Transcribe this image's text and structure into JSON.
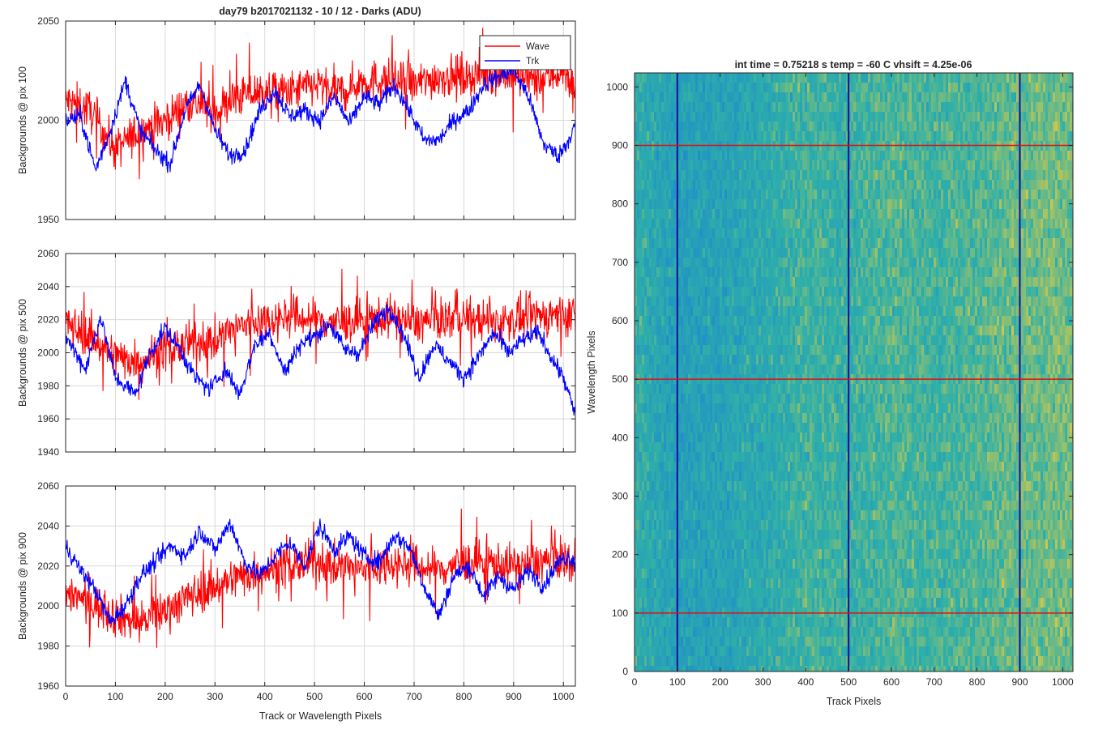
{
  "figure": {
    "title": "day79 b2017021132 - 10 / 12 - Darks (ADU)",
    "image_title": "int time = 0.75218 s   temp = -60 C   vhsift = 4.25e-06"
  },
  "colors": {
    "wave": "#ff0000",
    "trk": "#0000ff",
    "grid": "#d9d9d9",
    "axis": "#262626",
    "image_low": "#1f8fc8",
    "image_mid": "#2fb0a8",
    "image_high": "#c8c850"
  },
  "chart_data": [
    {
      "type": "line",
      "title": "day79 b2017021132 - 10 / 12 - Darks (ADU)",
      "xlabel": "",
      "ylabel": "Backgrounds @ pix 100",
      "xlim": [
        0,
        1024
      ],
      "ylim": [
        1950,
        2050
      ],
      "xticks": [
        0,
        100,
        200,
        300,
        400,
        500,
        600,
        700,
        800,
        900,
        1000
      ],
      "yticks": [
        1950,
        2000,
        2050
      ],
      "grid": true,
      "legend": "top-right",
      "series": [
        {
          "name": "Wave",
          "color": "#ff0000",
          "x": [
            0,
            50,
            100,
            150,
            200,
            250,
            300,
            350,
            400,
            450,
            500,
            550,
            600,
            650,
            700,
            750,
            800,
            850,
            900,
            950,
            1000,
            1024
          ],
          "y": [
            2010,
            2005,
            1985,
            1995,
            2000,
            2010,
            2005,
            2012,
            2015,
            2014,
            2018,
            2014,
            2020,
            2020,
            2018,
            2022,
            2022,
            2024,
            2022,
            2020,
            2025,
            2015
          ]
        },
        {
          "name": "Trk",
          "color": "#0000ff",
          "x": [
            0,
            30,
            60,
            90,
            120,
            150,
            180,
            210,
            240,
            270,
            300,
            330,
            360,
            390,
            420,
            450,
            480,
            510,
            540,
            570,
            600,
            630,
            660,
            690,
            720,
            750,
            780,
            810,
            840,
            870,
            900,
            930,
            960,
            990,
            1010,
            1024
          ],
          "y": [
            2000,
            2002,
            1975,
            1995,
            2020,
            1995,
            1985,
            1978,
            2005,
            2018,
            1995,
            1982,
            1985,
            2005,
            2015,
            2002,
            2005,
            2000,
            2012,
            1998,
            2012,
            2008,
            2018,
            2005,
            1990,
            1990,
            2000,
            2005,
            2018,
            2022,
            2025,
            2012,
            1988,
            1982,
            1990,
            1998
          ]
        }
      ]
    },
    {
      "type": "line",
      "title": "",
      "xlabel": "",
      "ylabel": "Backgrounds @ pix 500",
      "xlim": [
        0,
        1024
      ],
      "ylim": [
        1940,
        2060
      ],
      "xticks": [
        0,
        100,
        200,
        300,
        400,
        500,
        600,
        700,
        800,
        900,
        1000
      ],
      "yticks": [
        1940,
        1960,
        1980,
        2000,
        2020,
        2040,
        2060
      ],
      "grid": true,
      "series": [
        {
          "name": "Wave",
          "color": "#ff0000",
          "x": [
            0,
            50,
            100,
            150,
            200,
            250,
            300,
            350,
            400,
            450,
            500,
            550,
            600,
            650,
            700,
            750,
            800,
            850,
            900,
            950,
            1000,
            1024
          ],
          "y": [
            2018,
            2010,
            1998,
            1995,
            2002,
            2005,
            2008,
            2016,
            2020,
            2022,
            2020,
            2018,
            2020,
            2022,
            2018,
            2020,
            2022,
            2018,
            2020,
            2022,
            2024,
            2022
          ]
        },
        {
          "name": "Trk",
          "color": "#0000ff",
          "x": [
            0,
            40,
            70,
            100,
            140,
            170,
            200,
            230,
            260,
            290,
            320,
            350,
            380,
            410,
            440,
            470,
            500,
            530,
            560,
            590,
            620,
            650,
            680,
            710,
            740,
            770,
            800,
            830,
            860,
            890,
            920,
            950,
            980,
            1000,
            1024
          ],
          "y": [
            2010,
            1990,
            2022,
            1985,
            1975,
            2000,
            2015,
            2002,
            1985,
            1978,
            1990,
            1975,
            2005,
            2012,
            1988,
            2005,
            2010,
            2018,
            2002,
            2000,
            2018,
            2028,
            2010,
            1985,
            2005,
            1995,
            1985,
            1998,
            2012,
            2000,
            2008,
            2012,
            1995,
            1985,
            1962
          ]
        }
      ]
    },
    {
      "type": "line",
      "title": "",
      "xlabel": "Track or Wavelength Pixels",
      "ylabel": "Backgrounds @ pix 900",
      "xlim": [
        0,
        1024
      ],
      "ylim": [
        1960,
        2060
      ],
      "xticks": [
        0,
        100,
        200,
        300,
        400,
        500,
        600,
        700,
        800,
        900,
        1000
      ],
      "yticks": [
        1960,
        1980,
        2000,
        2020,
        2040,
        2060
      ],
      "grid": true,
      "series": [
        {
          "name": "Wave",
          "color": "#ff0000",
          "x": [
            0,
            50,
            100,
            150,
            200,
            250,
            300,
            350,
            400,
            450,
            500,
            550,
            600,
            650,
            700,
            750,
            800,
            850,
            900,
            950,
            1000,
            1024
          ],
          "y": [
            2008,
            2002,
            1995,
            1992,
            1998,
            2005,
            2010,
            2015,
            2018,
            2020,
            2022,
            2020,
            2018,
            2022,
            2020,
            2018,
            2022,
            2022,
            2020,
            2022,
            2024,
            2020
          ]
        },
        {
          "name": "Trk",
          "color": "#0000ff",
          "x": [
            0,
            30,
            60,
            90,
            120,
            150,
            180,
            210,
            240,
            270,
            300,
            330,
            360,
            390,
            420,
            450,
            480,
            510,
            540,
            570,
            600,
            630,
            660,
            690,
            720,
            750,
            780,
            810,
            840,
            870,
            900,
            930,
            960,
            990,
            1010,
            1024
          ],
          "y": [
            2030,
            2018,
            2008,
            1992,
            2000,
            2015,
            2022,
            2030,
            2025,
            2038,
            2028,
            2042,
            2022,
            2015,
            2025,
            2032,
            2020,
            2040,
            2028,
            2035,
            2025,
            2022,
            2035,
            2030,
            2010,
            1995,
            2015,
            2020,
            2005,
            2015,
            2008,
            2018,
            2010,
            2022,
            2025,
            2022
          ]
        }
      ]
    },
    {
      "type": "heatmap",
      "title": "int time = 0.75218 s   temp = -60 C   vhsift = 4.25e-06",
      "xlabel": "Track Pixels",
      "ylabel": "Wavelength Pixels",
      "xlim": [
        0,
        1024
      ],
      "ylim": [
        0,
        1024
      ],
      "xticks": [
        0,
        100,
        200,
        300,
        400,
        500,
        600,
        700,
        800,
        900,
        1000
      ],
      "yticks": [
        0,
        100,
        200,
        300,
        400,
        500,
        600,
        700,
        800,
        900,
        1000
      ],
      "vertical_markers": [
        100,
        500,
        900
      ],
      "horizontal_markers": [
        100,
        500,
        900
      ],
      "column_profile": {
        "x": [
          0,
          100,
          200,
          300,
          400,
          500,
          600,
          700,
          800,
          900,
          1000,
          1024
        ],
        "level": [
          0.45,
          0.25,
          0.3,
          0.4,
          0.55,
          0.5,
          0.6,
          0.55,
          0.6,
          0.7,
          0.72,
          0.7
        ]
      }
    }
  ]
}
